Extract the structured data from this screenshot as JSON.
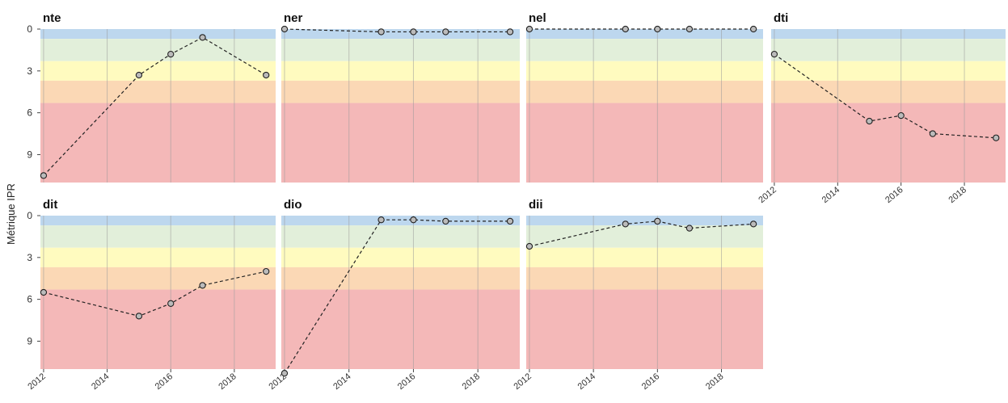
{
  "chart_data": {
    "type": "line",
    "ylabel": "Métrique IPR",
    "xlabel": "",
    "xlim": [
      2011.9,
      2019.3
    ],
    "ylim": [
      0,
      11
    ],
    "y_reversed": true,
    "y_ticks": [
      0,
      3,
      6,
      9
    ],
    "x_ticks": [
      2012,
      2014,
      2016,
      2018
    ],
    "bands": [
      {
        "from": 0,
        "to": 0.7,
        "color": "#bdd7ee"
      },
      {
        "from": 0.7,
        "to": 2.3,
        "color": "#e2efda"
      },
      {
        "from": 2.3,
        "to": 3.7,
        "color": "#fffbbf"
      },
      {
        "from": 3.7,
        "to": 5.3,
        "color": "#fbd8b5"
      },
      {
        "from": 5.3,
        "to": 11,
        "color": "#f4b8b8"
      }
    ],
    "series_style": {
      "line": "dashed",
      "point_fill": "#bbbbbb",
      "point_stroke": "#222222"
    },
    "facets": [
      {
        "title": "nte",
        "x": [
          2012,
          2015,
          2016,
          2017,
          2019
        ],
        "y": [
          10.5,
          3.3,
          1.8,
          0.6,
          3.3
        ]
      },
      {
        "title": "ner",
        "x": [
          2012,
          2015,
          2016,
          2017,
          2019
        ],
        "y": [
          0.0,
          0.2,
          0.2,
          0.2,
          0.2
        ]
      },
      {
        "title": "nel",
        "x": [
          2012,
          2015,
          2016,
          2017,
          2019
        ],
        "y": [
          0.0,
          0.0,
          0.0,
          0.0,
          0.0
        ]
      },
      {
        "title": "dti",
        "x": [
          2012,
          2015,
          2016,
          2017,
          2019
        ],
        "y": [
          1.8,
          6.6,
          6.2,
          7.5,
          7.8
        ]
      },
      {
        "title": "dit",
        "x": [
          2012,
          2015,
          2016,
          2017,
          2019
        ],
        "y": [
          5.5,
          7.2,
          6.3,
          5.0,
          4.0
        ]
      },
      {
        "title": "dio",
        "x": [
          2012,
          2015,
          2016,
          2017,
          2019
        ],
        "y": [
          11.3,
          0.3,
          0.3,
          0.4,
          0.4
        ]
      },
      {
        "title": "dii",
        "x": [
          2012,
          2015,
          2016,
          2017,
          2019
        ],
        "y": [
          2.2,
          0.6,
          0.4,
          0.9,
          0.6
        ]
      }
    ]
  }
}
